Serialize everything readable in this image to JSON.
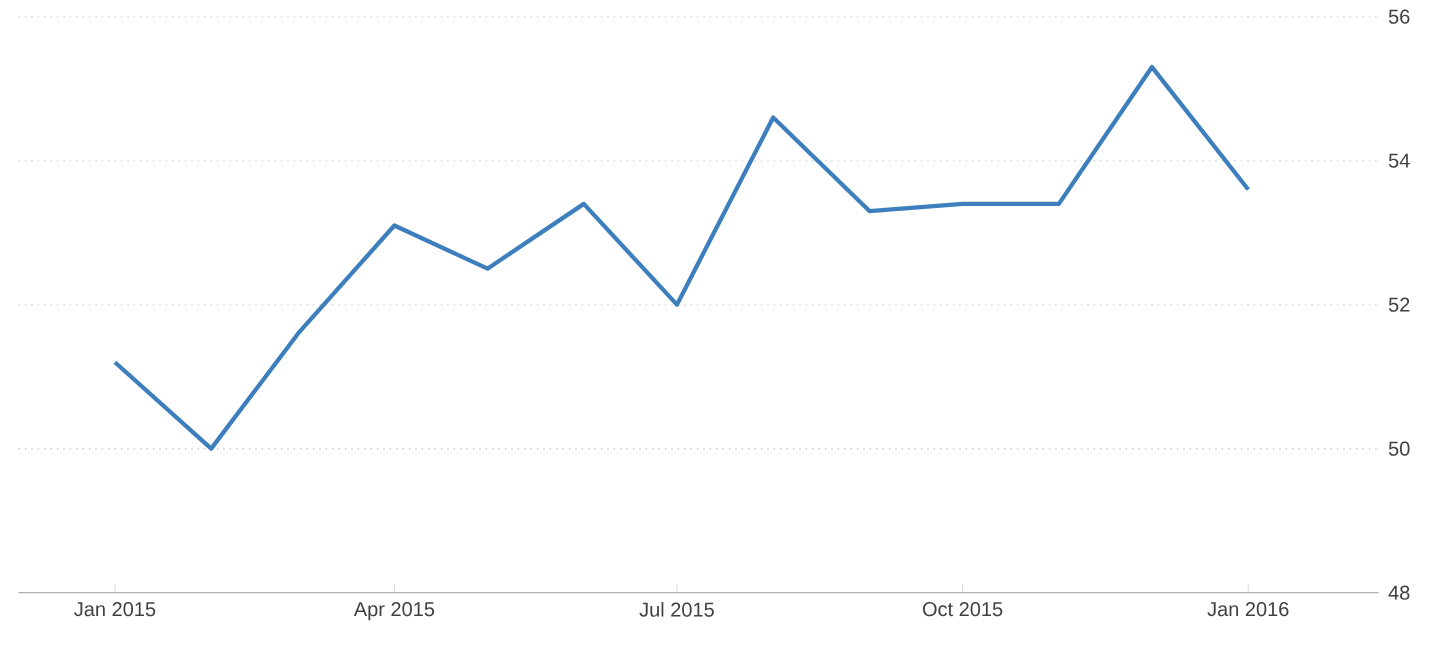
{
  "chart_data": {
    "type": "line",
    "x": [
      "2015-01",
      "2015-02",
      "2015-03",
      "2015-04",
      "2015-05",
      "2015-06",
      "2015-07",
      "2015-08",
      "2015-09",
      "2015-10",
      "2015-11",
      "2015-12",
      "2016-01"
    ],
    "series": [
      {
        "color": "#3d7fbd",
        "values": [
          51.2,
          50.0,
          51.6,
          53.1,
          52.5,
          53.4,
          52.0,
          54.6,
          53.3,
          53.4,
          53.4,
          55.3,
          53.6
        ]
      }
    ],
    "xlim": [
      "2014-12-01",
      "2016-02-12"
    ],
    "xticks": [
      {
        "value": "2015-01",
        "label": "Jan 2015"
      },
      {
        "value": "2015-04",
        "label": "Apr 2015"
      },
      {
        "value": "2015-07",
        "label": "Jul 2015"
      },
      {
        "value": "2015-10",
        "label": "Oct 2015"
      },
      {
        "value": "2016-01",
        "label": "Jan 2016"
      }
    ],
    "ylim": [
      48,
      56
    ],
    "yticks": [
      48,
      50,
      52,
      54,
      56
    ],
    "grid": "y",
    "marker": "none",
    "line_style": "solid"
  }
}
